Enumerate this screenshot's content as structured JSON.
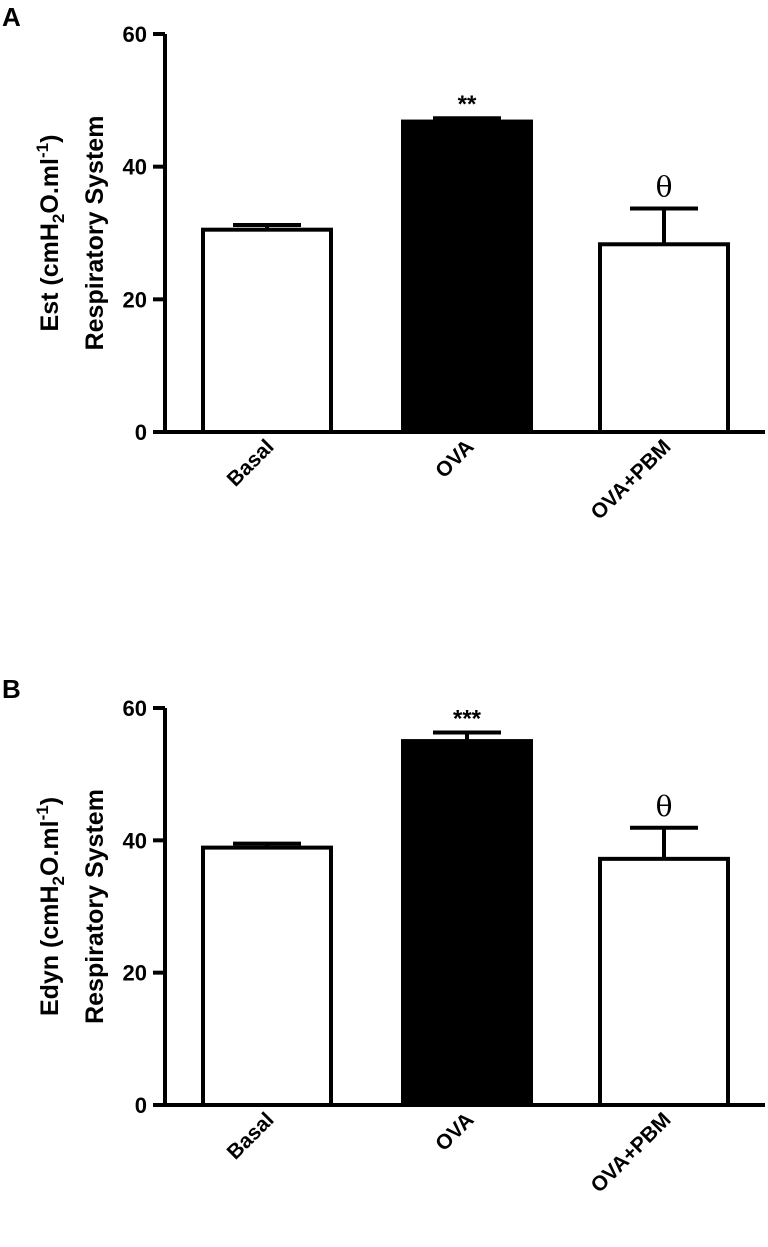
{
  "chart_data": [
    {
      "panel": "A",
      "type": "bar",
      "categories": [
        "Basal",
        "OVA",
        "OVA+PBM"
      ],
      "values": [
        30.5,
        46.8,
        28.3
      ],
      "errors": [
        0.7,
        0.5,
        5.4
      ],
      "fills": [
        "#ffffff",
        "#000000",
        "#ffffff"
      ],
      "annotations": [
        "",
        "**",
        "θ"
      ],
      "ylabel_line1_prefix": "Est (cmH",
      "ylabel_line1_sub": "2",
      "ylabel_line1_mid": "O.ml",
      "ylabel_line1_sup": "-1",
      "ylabel_line1_suffix": ")",
      "ylabel_line2": "Respiratory System",
      "ylim": [
        0,
        60
      ],
      "yticks": [
        "0",
        "20",
        "40",
        "60"
      ]
    },
    {
      "panel": "B",
      "type": "bar",
      "categories": [
        "Basal",
        "OVA",
        "OVA+PBM"
      ],
      "values": [
        38.9,
        55.0,
        37.2
      ],
      "errors": [
        0.6,
        1.3,
        4.7
      ],
      "fills": [
        "#ffffff",
        "#000000",
        "#ffffff"
      ],
      "annotations": [
        "",
        "***",
        "θ"
      ],
      "ylabel_line1_prefix": "Edyn (cmH",
      "ylabel_line1_sub": "2",
      "ylabel_line1_mid": "O.ml",
      "ylabel_line1_sup": "-1",
      "ylabel_line1_suffix": ")",
      "ylabel_line2": "Respiratory System",
      "ylim": [
        0,
        60
      ],
      "yticks": [
        "0",
        "20",
        "40",
        "60"
      ]
    }
  ]
}
